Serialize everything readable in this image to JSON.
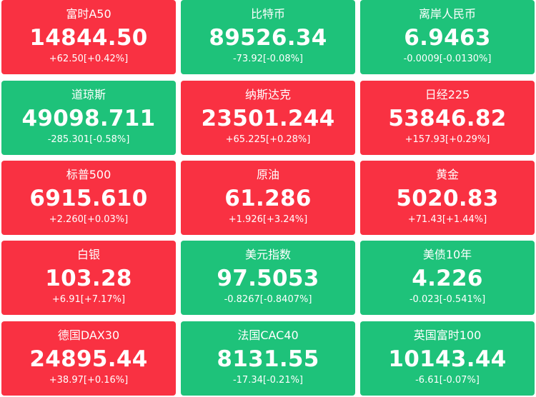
{
  "colors": {
    "up": "#f93142",
    "down": "#1ec27a",
    "text": "#ffffff"
  },
  "tiles": [
    {
      "name": "富时A50",
      "price": "14844.50",
      "change": "+62.50[+0.42%]",
      "trend": "up"
    },
    {
      "name": "比特币",
      "price": "89526.34",
      "change": "-73.92[-0.08%]",
      "trend": "down"
    },
    {
      "name": "离岸人民币",
      "price": "6.9463",
      "change": "-0.0009[-0.0130%]",
      "trend": "down"
    },
    {
      "name": "道琼斯",
      "price": "49098.711",
      "change": "-285.301[-0.58%]",
      "trend": "down"
    },
    {
      "name": "纳斯达克",
      "price": "23501.244",
      "change": "+65.225[+0.28%]",
      "trend": "up"
    },
    {
      "name": "日经225",
      "price": "53846.82",
      "change": "+157.93[+0.29%]",
      "trend": "up"
    },
    {
      "name": "标普500",
      "price": "6915.610",
      "change": "+2.260[+0.03%]",
      "trend": "up"
    },
    {
      "name": "原油",
      "price": "61.286",
      "change": "+1.926[+3.24%]",
      "trend": "up"
    },
    {
      "name": "黄金",
      "price": "5020.83",
      "change": "+71.43[+1.44%]",
      "trend": "up"
    },
    {
      "name": "白银",
      "price": "103.28",
      "change": "+6.91[+7.17%]",
      "trend": "up"
    },
    {
      "name": "美元指数",
      "price": "97.5053",
      "change": "-0.8267[-0.8407%]",
      "trend": "down"
    },
    {
      "name": "美债10年",
      "price": "4.226",
      "change": "-0.023[-0.541%]",
      "trend": "down"
    },
    {
      "name": "德国DAX30",
      "price": "24895.44",
      "change": "+38.97[+0.16%]",
      "trend": "up"
    },
    {
      "name": "法国CAC40",
      "price": "8131.55",
      "change": "-17.34[-0.21%]",
      "trend": "down"
    },
    {
      "name": "英国富时100",
      "price": "10143.44",
      "change": "-6.61[-0.07%]",
      "trend": "down"
    }
  ]
}
